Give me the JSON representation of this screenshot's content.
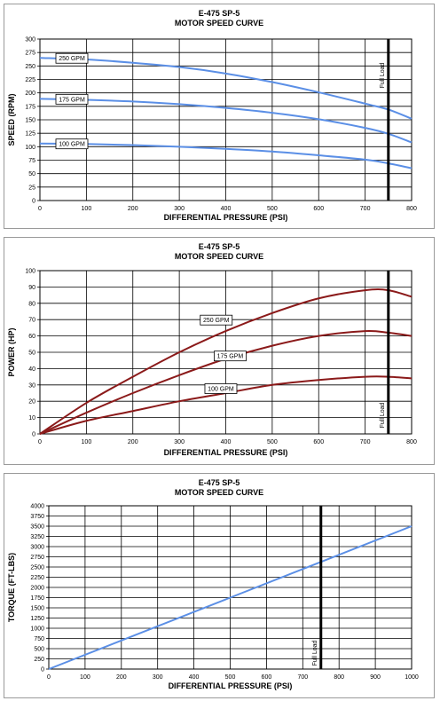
{
  "chart_data": [
    {
      "type": "line",
      "title": "E-475 SP-5",
      "subtitle": "MOTOR SPEED CURVE",
      "xlabel": "DIFFERENTIAL PRESSURE (PSI)",
      "ylabel": "SPEED (RPM)",
      "xlim": [
        0,
        800
      ],
      "ylim": [
        0,
        300
      ],
      "xticks": [
        "0",
        "100",
        "200",
        "300",
        "400",
        "500",
        "600",
        "700",
        "800"
      ],
      "yticks": [
        "0",
        "25",
        "50",
        "75",
        "100",
        "125",
        "150",
        "175",
        "200",
        "225",
        "250",
        "275",
        "300"
      ],
      "grid": true,
      "full_load": {
        "x": 750,
        "label": "Full Load"
      },
      "series": [
        {
          "name": "250 GPM",
          "color": "#5b8fe6",
          "x": [
            0,
            100,
            200,
            300,
            400,
            500,
            600,
            700,
            750,
            800
          ],
          "y": [
            265,
            262,
            256,
            248,
            236,
            220,
            201,
            180,
            169,
            152
          ]
        },
        {
          "name": "175 GPM",
          "color": "#5b8fe6",
          "x": [
            0,
            100,
            200,
            300,
            400,
            500,
            600,
            700,
            750,
            800
          ],
          "y": [
            189,
            187,
            184,
            179,
            172,
            163,
            151,
            135,
            124,
            108
          ]
        },
        {
          "name": "100 GPM",
          "color": "#5b8fe6",
          "x": [
            0,
            100,
            200,
            300,
            400,
            500,
            600,
            700,
            750,
            800
          ],
          "y": [
            106,
            105,
            103,
            100,
            96,
            91,
            84,
            76,
            69,
            60
          ]
        }
      ]
    },
    {
      "type": "line",
      "title": "E-475 SP-5",
      "subtitle": "MOTOR SPEED CURVE",
      "xlabel": "DIFFERENTIAL PRESSURE (PSI)",
      "ylabel": "POWER (HP)",
      "xlim": [
        0,
        800
      ],
      "ylim": [
        0,
        100
      ],
      "xticks": [
        "0",
        "100",
        "200",
        "300",
        "400",
        "500",
        "600",
        "700",
        "800"
      ],
      "yticks": [
        "0",
        "10",
        "20",
        "30",
        "40",
        "50",
        "60",
        "70",
        "80",
        "90",
        "100"
      ],
      "grid": true,
      "full_load": {
        "x": 750,
        "label": "Full Load"
      },
      "series": [
        {
          "name": "250 GPM",
          "color": "#8b1a1a",
          "x": [
            0,
            100,
            200,
            300,
            400,
            500,
            600,
            700,
            750,
            800
          ],
          "y": [
            0,
            19,
            35,
            50,
            63,
            74,
            83,
            88,
            88,
            84
          ]
        },
        {
          "name": "175 GPM",
          "color": "#8b1a1a",
          "x": [
            0,
            100,
            200,
            300,
            400,
            500,
            600,
            700,
            750,
            800
          ],
          "y": [
            0,
            13,
            25,
            36,
            46,
            54,
            60,
            63,
            62,
            60
          ]
        },
        {
          "name": "100 GPM",
          "color": "#8b1a1a",
          "x": [
            0,
            100,
            200,
            300,
            400,
            500,
            600,
            700,
            750,
            800
          ],
          "y": [
            0,
            8,
            14,
            20,
            25,
            30,
            33,
            35,
            35,
            34
          ]
        }
      ]
    },
    {
      "type": "line",
      "title": "E-475 SP-5",
      "subtitle": "MOTOR SPEED CURVE",
      "xlabel": "DIFFERENTIAL PRESSURE (PSI)",
      "ylabel": "TORQUE (FT-LBS)",
      "xlim": [
        0,
        1000
      ],
      "ylim": [
        0,
        4000
      ],
      "xticks": [
        "0",
        "100",
        "200",
        "300",
        "400",
        "500",
        "600",
        "700",
        "800",
        "900",
        "1000"
      ],
      "yticks": [
        "0",
        "250",
        "500",
        "750",
        "1000",
        "1250",
        "1500",
        "1750",
        "2000",
        "2250",
        "2500",
        "2750",
        "3000",
        "3250",
        "3500",
        "3750",
        "4000"
      ],
      "grid": true,
      "full_load": {
        "x": 750,
        "label": "Full Load"
      },
      "series": [
        {
          "name": "",
          "color": "#5b8fe6",
          "x": [
            0,
            1000
          ],
          "y": [
            0,
            3500
          ]
        }
      ]
    }
  ]
}
